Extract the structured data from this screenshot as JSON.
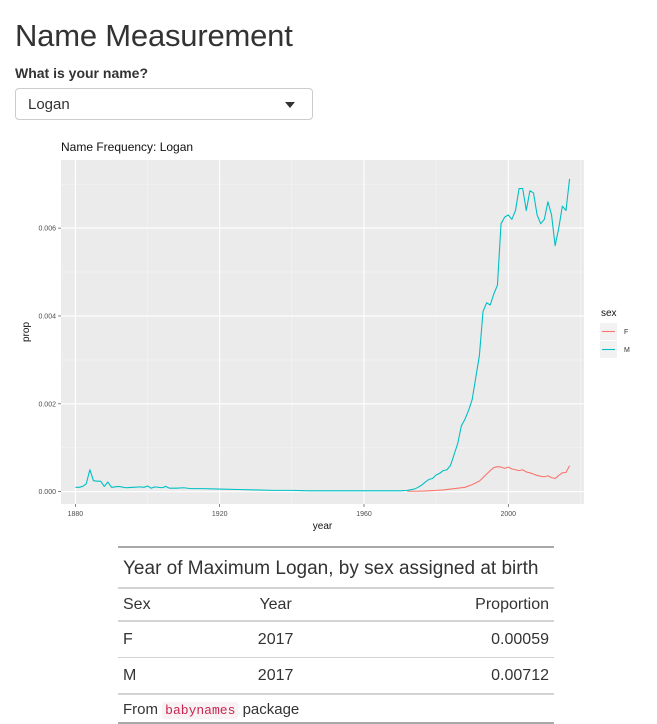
{
  "page": {
    "title": "Name Measurement",
    "name_label": "What is your name?",
    "name_select": {
      "value": "Logan"
    }
  },
  "chart_data": {
    "type": "line",
    "title": "Name Frequency: Logan",
    "xlabel": "year",
    "ylabel": "prop",
    "xlim": [
      1876,
      2021
    ],
    "ylim": [
      -0.00028,
      0.00755
    ],
    "xticks": [
      1880,
      1920,
      1960,
      2000
    ],
    "yticks": [
      0.0,
      0.002,
      0.004,
      0.006
    ],
    "xtick_labels": [
      "1880",
      "1920",
      "1960",
      "2000"
    ],
    "ytick_labels": [
      "0.000",
      "0.002",
      "0.004",
      "0.006"
    ],
    "grid": true,
    "legend": {
      "title": "sex",
      "position": "right"
    },
    "series": [
      {
        "name": "F",
        "color": "#F8766D",
        "x": [
          1972,
          1975,
          1978,
          1980,
          1982,
          1984,
          1986,
          1988,
          1990,
          1992,
          1993,
          1994,
          1995,
          1996,
          1997,
          1998,
          1999,
          2000,
          2001,
          2002,
          2003,
          2004,
          2005,
          2006,
          2007,
          2008,
          2009,
          2010,
          2011,
          2012,
          2013,
          2014,
          2015,
          2016,
          2017
        ],
        "y": [
          1e-05,
          1e-05,
          2e-05,
          3e-05,
          4e-05,
          6e-05,
          8e-05,
          0.0001,
          0.00016,
          0.00024,
          0.00032,
          0.0004,
          0.00048,
          0.00055,
          0.00057,
          0.00056,
          0.00053,
          0.00056,
          0.00052,
          0.0005,
          0.00048,
          0.0005,
          0.00045,
          0.00043,
          0.0004,
          0.00037,
          0.00035,
          0.00034,
          0.00036,
          0.00032,
          0.0003,
          0.00037,
          0.00043,
          0.00044,
          0.00059
        ]
      },
      {
        "name": "M",
        "color": "#00BFC4",
        "x": [
          1880,
          1881,
          1882,
          1883,
          1884,
          1885,
          1886,
          1887,
          1888,
          1889,
          1890,
          1892,
          1894,
          1896,
          1898,
          1899,
          1900,
          1901,
          1902,
          1904,
          1905,
          1906,
          1908,
          1910,
          1912,
          1915,
          1920,
          1925,
          1930,
          1935,
          1940,
          1945,
          1950,
          1955,
          1960,
          1965,
          1970,
          1972,
          1974,
          1975,
          1976,
          1977,
          1978,
          1979,
          1980,
          1981,
          1982,
          1983,
          1984,
          1985,
          1986,
          1987,
          1988,
          1989,
          1990,
          1991,
          1992,
          1993,
          1994,
          1995,
          1996,
          1997,
          1998,
          1999,
          2000,
          2001,
          2002,
          2003,
          2004,
          2005,
          2006,
          2007,
          2008,
          2009,
          2010,
          2011,
          2012,
          2013,
          2014,
          2015,
          2016,
          2017
        ],
        "y": [
          0.0001,
          0.0001,
          0.00012,
          0.00018,
          0.0005,
          0.00025,
          0.00024,
          0.00024,
          0.00012,
          0.00022,
          0.0001,
          0.00012,
          9e-05,
          0.0001,
          0.00011,
          0.0001,
          0.00013,
          8e-05,
          0.00011,
          9e-05,
          0.00012,
          8e-05,
          8e-05,
          9e-05,
          7e-05,
          7e-05,
          6e-05,
          5e-05,
          4e-05,
          3e-05,
          3e-05,
          2e-05,
          2e-05,
          2e-05,
          2e-05,
          2e-05,
          2e-05,
          3e-05,
          6e-05,
          0.0001,
          0.00015,
          0.00022,
          0.00028,
          0.0003,
          0.00038,
          0.00042,
          0.00048,
          0.0005,
          0.0006,
          0.00085,
          0.0011,
          0.0015,
          0.00165,
          0.00185,
          0.0021,
          0.0026,
          0.0031,
          0.0041,
          0.0043,
          0.00425,
          0.0045,
          0.0047,
          0.0061,
          0.00625,
          0.0063,
          0.0062,
          0.0064,
          0.0069,
          0.0069,
          0.0064,
          0.00685,
          0.0068,
          0.0063,
          0.0061,
          0.0062,
          0.0066,
          0.0063,
          0.0056,
          0.006,
          0.0065,
          0.0064,
          0.00712
        ]
      }
    ]
  },
  "table": {
    "title": "Year of Maximum Logan, by sex assigned at birth",
    "columns": {
      "sex": "Sex",
      "year": "Year",
      "prop": "Proportion"
    },
    "rows": [
      {
        "sex": "F",
        "year": "2017",
        "prop": "0.00059"
      },
      {
        "sex": "M",
        "year": "2017",
        "prop": "0.00712"
      }
    ],
    "footnote": {
      "prefix": "From",
      "code": "babynames",
      "suffix": "package"
    }
  }
}
